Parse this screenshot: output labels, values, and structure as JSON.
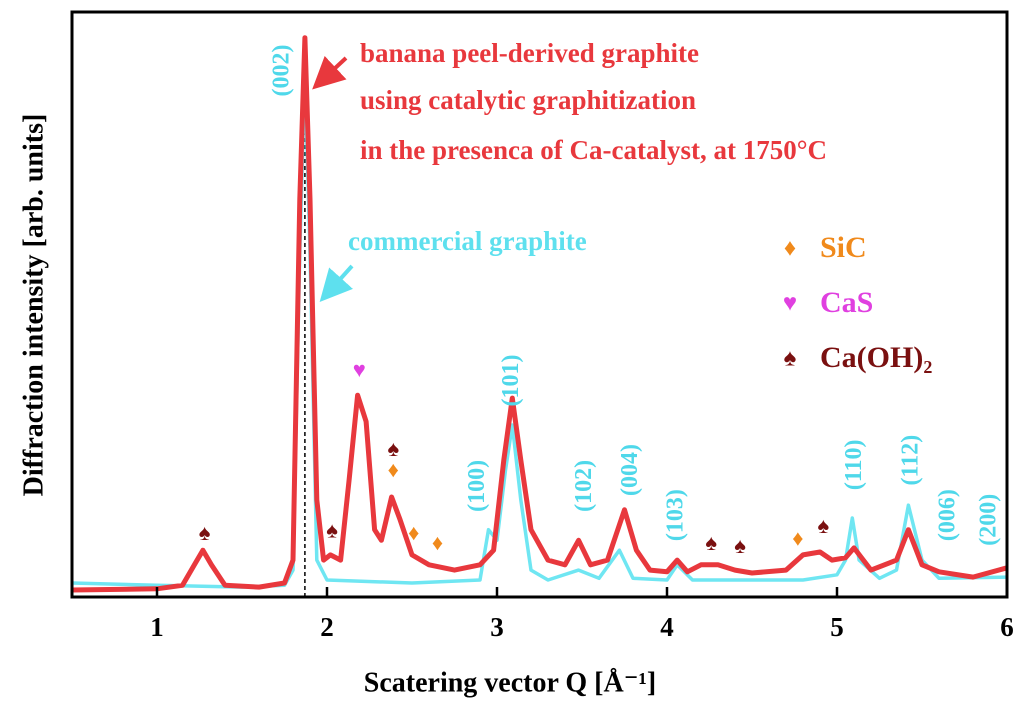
{
  "chart_data": {
    "type": "line",
    "xlabel": "Scatering vector Q [Å⁻¹]",
    "ylabel": "Diffraction intensity [arb. units]",
    "xlim": [
      0.5,
      6
    ],
    "ylim": [
      0,
      100
    ],
    "xticks": [
      1,
      2,
      3,
      4,
      5,
      6
    ],
    "vline": 1.87,
    "series": [
      {
        "name": "banana peel-derived graphite",
        "color": "#e8383d",
        "x": [
          0.5,
          1.0,
          1.15,
          1.22,
          1.27,
          1.32,
          1.4,
          1.6,
          1.75,
          1.8,
          1.84,
          1.87,
          1.9,
          1.94,
          1.98,
          2.02,
          2.08,
          2.13,
          2.18,
          2.23,
          2.28,
          2.32,
          2.38,
          2.43,
          2.5,
          2.6,
          2.75,
          2.9,
          2.98,
          3.04,
          3.09,
          3.14,
          3.2,
          3.3,
          3.4,
          3.48,
          3.55,
          3.65,
          3.75,
          3.82,
          3.9,
          4.0,
          4.06,
          4.12,
          4.2,
          4.3,
          4.4,
          4.5,
          4.7,
          4.8,
          4.9,
          4.97,
          5.05,
          5.1,
          5.2,
          5.35,
          5.42,
          5.5,
          5.6,
          5.8,
          6.0
        ],
        "values": [
          1.2,
          1.4,
          2,
          5.5,
          8,
          5.5,
          2,
          1.7,
          2.4,
          6.3,
          68,
          95.6,
          68,
          16.6,
          6.3,
          7.2,
          6.3,
          20,
          34.5,
          30,
          11.5,
          9.7,
          17.1,
          13.2,
          7.2,
          5.5,
          4.6,
          5.5,
          8,
          23.4,
          34,
          23.4,
          11.5,
          6.3,
          5.5,
          9.7,
          5.5,
          6.3,
          14.9,
          8,
          4.6,
          4.3,
          6.3,
          4.3,
          5.5,
          5.5,
          4.6,
          4.1,
          4.6,
          7.2,
          7.7,
          6.3,
          6.7,
          8.4,
          4.6,
          6.3,
          11.5,
          5.5,
          4.3,
          3.4,
          5
        ]
      },
      {
        "name": "commercial graphite",
        "color": "#6fe6f2",
        "x": [
          0.5,
          1.0,
          1.5,
          1.75,
          1.8,
          1.84,
          1.87,
          1.9,
          1.94,
          2.0,
          2.5,
          2.9,
          2.95,
          3.0,
          3.05,
          3.09,
          3.14,
          3.2,
          3.3,
          3.48,
          3.6,
          3.72,
          3.8,
          4.0,
          4.06,
          4.15,
          4.8,
          5.0,
          5.05,
          5.09,
          5.13,
          5.25,
          5.35,
          5.42,
          5.5,
          5.6,
          6.0
        ],
        "values": [
          2.4,
          2.0,
          1.7,
          2.0,
          4.6,
          59,
          90,
          59,
          6.3,
          2.9,
          2.4,
          2.9,
          11.5,
          9.7,
          21.7,
          29.4,
          16.6,
          4.6,
          2.9,
          4.6,
          3.2,
          8,
          3.2,
          2.9,
          5.5,
          2.9,
          2.9,
          3.8,
          6.3,
          13.5,
          6.3,
          3.2,
          4.6,
          15.7,
          6.3,
          3.2,
          3.4
        ]
      }
    ],
    "title_lines": [
      "banana peel-derived graphite",
      "using catalytic graphitization",
      "in the presenca of Ca-catalyst, at 1750°C"
    ],
    "cyan_label": "commercial graphite",
    "legend_items": [
      {
        "symbol": "♦",
        "label": "SiC",
        "color": "#f08a1c"
      },
      {
        "symbol": "♥",
        "label": "CaS",
        "color": "#e040e0"
      },
      {
        "symbol": "♠",
        "label": "Ca(OH)₂",
        "color": "#7a1010"
      }
    ],
    "peak_labels": [
      {
        "text": "(002)",
        "x": 1.74,
        "y": 90
      },
      {
        "text": "(100)",
        "x": 2.89,
        "y": 19
      },
      {
        "text": "(101)",
        "x": 3.09,
        "y": 37
      },
      {
        "text": "(102)",
        "x": 3.52,
        "y": 19
      },
      {
        "text": "(004)",
        "x": 3.79,
        "y": 21.7
      },
      {
        "text": "(103)",
        "x": 4.06,
        "y": 14
      },
      {
        "text": "(110)",
        "x": 5.11,
        "y": 22.6
      },
      {
        "text": "(112)",
        "x": 5.44,
        "y": 23.4
      },
      {
        "text": "(006)",
        "x": 5.66,
        "y": 14
      },
      {
        "text": "(200)",
        "x": 5.9,
        "y": 13.2
      }
    ],
    "markers": [
      {
        "text": "♠",
        "x": 1.28,
        "y": 10.6,
        "color": "#7a1010"
      },
      {
        "text": "♠",
        "x": 2.03,
        "y": 11,
        "color": "#7a1010"
      },
      {
        "text": "♥",
        "x": 2.19,
        "y": 38.5,
        "color": "#e040e0"
      },
      {
        "text": "♠",
        "x": 2.39,
        "y": 25,
        "color": "#7a1010"
      },
      {
        "text": "♦",
        "x": 2.39,
        "y": 21.4,
        "color": "#f08a1c"
      },
      {
        "text": "♦",
        "x": 2.51,
        "y": 10.6,
        "color": "#f08a1c"
      },
      {
        "text": "♦",
        "x": 2.65,
        "y": 8.9,
        "color": "#f08a1c"
      },
      {
        "text": "♠",
        "x": 4.26,
        "y": 8.9,
        "color": "#7a1010"
      },
      {
        "text": "♠",
        "x": 4.43,
        "y": 8.4,
        "color": "#7a1010"
      },
      {
        "text": "♦",
        "x": 4.77,
        "y": 9.7,
        "color": "#f08a1c"
      },
      {
        "text": "♠",
        "x": 4.92,
        "y": 11.8,
        "color": "#7a1010"
      }
    ]
  }
}
